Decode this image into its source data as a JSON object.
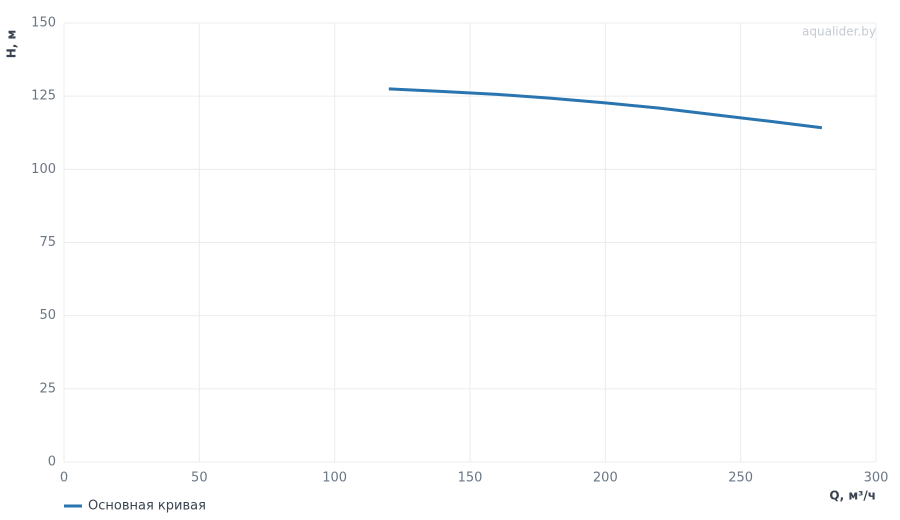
{
  "chart_data": {
    "type": "line",
    "x_label": "Q, м³/ч",
    "y_label": "H, м",
    "watermark": "aqualider.by",
    "x": [
      120,
      140,
      160,
      180,
      200,
      220,
      240,
      260,
      280
    ],
    "series": [
      {
        "name": "Основная кривая",
        "color": "#2a75b0",
        "values": [
          127.5,
          126.6,
          125.6,
          124.3,
          122.7,
          120.9,
          118.7,
          116.5,
          114.2
        ]
      }
    ],
    "xlim": [
      0,
      300
    ],
    "xticks": [
      0,
      50,
      100,
      150,
      200,
      250,
      300
    ],
    "ylim": [
      0,
      150
    ],
    "yticks": [
      0,
      25,
      50,
      75,
      100,
      125,
      150
    ],
    "grid": true,
    "legend": "bottom-left"
  }
}
